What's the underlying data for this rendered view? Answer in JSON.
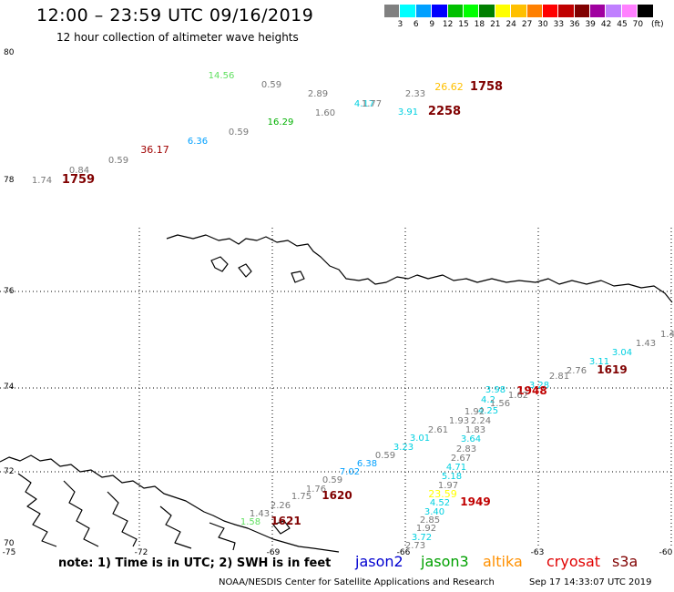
{
  "header": {
    "title": "12:00 – 23:59 UTC 09/16/2019",
    "subtitle": "12 hour collection of altimeter wave heights"
  },
  "color_scale": {
    "unit": "(ft)",
    "colors": [
      "#808080",
      "#00ffff",
      "#00a0ff",
      "#0000ff",
      "#00c000",
      "#00ff00",
      "#008000",
      "#ffff00",
      "#ffc000",
      "#ff8000",
      "#ff0000",
      "#c00000",
      "#800000",
      "#a000a0",
      "#c080ff",
      "#ff80ff",
      "#000000"
    ],
    "labels": [
      "3",
      "6",
      "9",
      "12",
      "15",
      "18",
      "21",
      "24",
      "27",
      "30",
      "33",
      "36",
      "39",
      "42",
      "45",
      "70"
    ]
  },
  "axes": {
    "lat_ticks": [
      "80",
      "78",
      "76",
      "74",
      "72",
      "70"
    ],
    "lon_ticks": [
      "-75",
      "-72",
      "-69",
      "-66",
      "-63",
      "-60"
    ]
  },
  "observations": [
    {
      "text": "14.56",
      "color": "#60e060"
    },
    {
      "text": "0.59",
      "color": "#777777"
    },
    {
      "text": "2.89",
      "color": "#777777"
    },
    {
      "text": "2.33",
      "color": "#777777"
    },
    {
      "text": "26.62",
      "color": "#ffc000"
    },
    {
      "text": "1758",
      "color": "#800000"
    },
    {
      "text": "4.17",
      "color": "#00d0e0"
    },
    {
      "text": "1.77",
      "color": "#777777"
    },
    {
      "text": "1.60",
      "color": "#777777"
    },
    {
      "text": "3.91",
      "color": "#00d0e0"
    },
    {
      "text": "2258",
      "color": "#800000"
    },
    {
      "text": "16.29",
      "color": "#00b000"
    },
    {
      "text": "0.59",
      "color": "#777777"
    },
    {
      "text": "6.36",
      "color": "#00a0ff"
    },
    {
      "text": "36.17",
      "color": "#a00000"
    },
    {
      "text": "0.59",
      "color": "#777777"
    },
    {
      "text": "0.84",
      "color": "#777777"
    },
    {
      "text": "1.74",
      "color": "#777777"
    },
    {
      "text": "1759",
      "color": "#800000"
    },
    {
      "text": "1.4",
      "color": "#777777"
    },
    {
      "text": "1.43",
      "color": "#777777"
    },
    {
      "text": "3.04",
      "color": "#00d0e0"
    },
    {
      "text": "3.11",
      "color": "#00d0e0"
    },
    {
      "text": "2.76",
      "color": "#777777"
    },
    {
      "text": "1619",
      "color": "#800000"
    },
    {
      "text": "2.81",
      "color": "#777777"
    },
    {
      "text": "3.28",
      "color": "#00d0e0"
    },
    {
      "text": "1948",
      "color": "#c00000"
    },
    {
      "text": "1.62",
      "color": "#777777"
    },
    {
      "text": "3.98",
      "color": "#00d0e0"
    },
    {
      "text": "4.2",
      "color": "#00d0e0"
    },
    {
      "text": "1.56",
      "color": "#777777"
    },
    {
      "text": "4.25",
      "color": "#00d0e0"
    },
    {
      "text": "1.92",
      "color": "#777777"
    },
    {
      "text": "1.93",
      "color": "#777777"
    },
    {
      "text": "2.24",
      "color": "#777777"
    },
    {
      "text": "1.83",
      "color": "#777777"
    },
    {
      "text": "2.61",
      "color": "#777777"
    },
    {
      "text": "3.01",
      "color": "#00d0e0"
    },
    {
      "text": "3.64",
      "color": "#00d0e0"
    },
    {
      "text": "3.23",
      "color": "#00d0e0"
    },
    {
      "text": "2.83",
      "color": "#777777"
    },
    {
      "text": "0.59",
      "color": "#777777"
    },
    {
      "text": "2.67",
      "color": "#777777"
    },
    {
      "text": "6.38",
      "color": "#00a0ff"
    },
    {
      "text": "4.71",
      "color": "#00d0e0"
    },
    {
      "text": "7.02",
      "color": "#00a0ff"
    },
    {
      "text": "5.18",
      "color": "#00d0e0"
    },
    {
      "text": "0.59",
      "color": "#777777"
    },
    {
      "text": "1.97",
      "color": "#777777"
    },
    {
      "text": "1.76",
      "color": "#777777"
    },
    {
      "text": "1620",
      "color": "#800000"
    },
    {
      "text": "23.59",
      "color": "#ffff00"
    },
    {
      "text": "1.75",
      "color": "#777777"
    },
    {
      "text": "4.52",
      "color": "#00d0e0"
    },
    {
      "text": "1949",
      "color": "#c00000"
    },
    {
      "text": "2.26",
      "color": "#777777"
    },
    {
      "text": "3.40",
      "color": "#00d0e0"
    },
    {
      "text": "1.43",
      "color": "#777777"
    },
    {
      "text": "2.85",
      "color": "#777777"
    },
    {
      "text": "1.58",
      "color": "#60e060"
    },
    {
      "text": "1621",
      "color": "#800000"
    },
    {
      "text": "1.92",
      "color": "#777777"
    },
    {
      "text": "3.72",
      "color": "#00d0e0"
    },
    {
      "text": "2.73",
      "color": "#777777"
    }
  ],
  "legend": {
    "note": "note: 1) Time is in UTC; 2) SWH is in feet",
    "satellites": [
      {
        "name": "jason2",
        "color": "#0000d0"
      },
      {
        "name": "jason3",
        "color": "#00a000"
      },
      {
        "name": "altika",
        "color": "#ff9000"
      },
      {
        "name": "cryosat",
        "color": "#e00000"
      },
      {
        "name": "s3a",
        "color": "#800000"
      }
    ]
  },
  "footer": {
    "credit": "NOAA/NESDIS Center for Satellite Applications and Research",
    "timestamp": "Sep 17 14:33:07 UTC 2019"
  }
}
